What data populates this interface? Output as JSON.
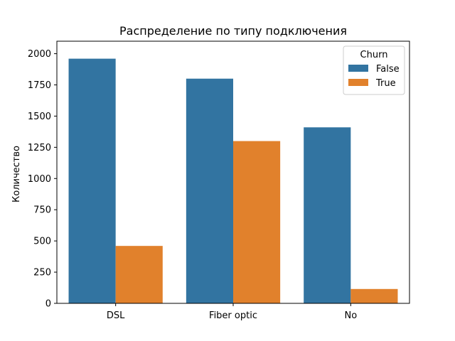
{
  "chart_data": {
    "type": "bar",
    "title": "Распределение по типу подключения",
    "xlabel": "",
    "ylabel": "Количество",
    "categories": [
      "DSL",
      "Fiber optic",
      "No"
    ],
    "series": [
      {
        "name": "False",
        "color": "#3274a1",
        "values": [
          1960,
          1800,
          1410
        ]
      },
      {
        "name": "True",
        "color": "#e1812c",
        "values": [
          460,
          1300,
          115
        ]
      }
    ],
    "ylim": [
      0,
      2100
    ],
    "yticks": [
      0,
      250,
      500,
      750,
      1000,
      1250,
      1500,
      1750,
      2000
    ],
    "grid": false,
    "legend": {
      "title": "Churn",
      "placement": "top-right"
    }
  }
}
